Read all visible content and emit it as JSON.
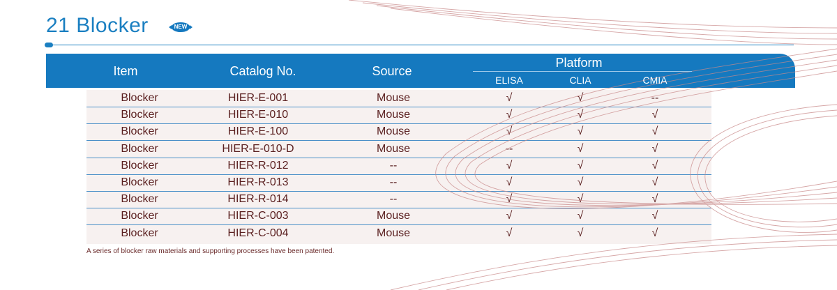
{
  "title": "21 Blocker",
  "badge": "NEW",
  "header": {
    "item": "Item",
    "catalog": "Catalog No.",
    "source": "Source",
    "platform": "Platform",
    "platforms": [
      "ELISA",
      "CLIA",
      "CMIA"
    ]
  },
  "rows": [
    {
      "item": "Blocker",
      "catalog": "HIER-E-001",
      "source": "Mouse",
      "elisa": "√",
      "clia": "√",
      "cmia": "--"
    },
    {
      "item": "Blocker",
      "catalog": "HIER-E-010",
      "source": "Mouse",
      "elisa": "√",
      "clia": "√",
      "cmia": "√"
    },
    {
      "item": "Blocker",
      "catalog": "HIER-E-100",
      "source": "Mouse",
      "elisa": "√",
      "clia": "√",
      "cmia": "√"
    },
    {
      "item": "Blocker",
      "catalog": "HIER-E-010-D",
      "source": "Mouse",
      "elisa": "--",
      "clia": "√",
      "cmia": "√"
    },
    {
      "item": "Blocker",
      "catalog": "HIER-R-012",
      "source": "--",
      "elisa": "√",
      "clia": "√",
      "cmia": "√"
    },
    {
      "item": "Blocker",
      "catalog": "HIER-R-013",
      "source": "--",
      "elisa": "√",
      "clia": "√",
      "cmia": "√"
    },
    {
      "item": "Blocker",
      "catalog": "HIER-R-014",
      "source": "--",
      "elisa": "√",
      "clia": "√",
      "cmia": "√"
    },
    {
      "item": "Blocker",
      "catalog": "HIER-C-003",
      "source": "Mouse",
      "elisa": "√",
      "clia": "√",
      "cmia": "√"
    },
    {
      "item": "Blocker",
      "catalog": "HIER-C-004",
      "source": "Mouse",
      "elisa": "√",
      "clia": "√",
      "cmia": "√"
    }
  ],
  "footnote": "A series of blocker raw materials and supporting processes  have been patented.",
  "colors": {
    "accent": "#1579bf",
    "text": "#5a1f1f",
    "row_bg": "#f7f1f0",
    "deco": "#c98a8a"
  }
}
